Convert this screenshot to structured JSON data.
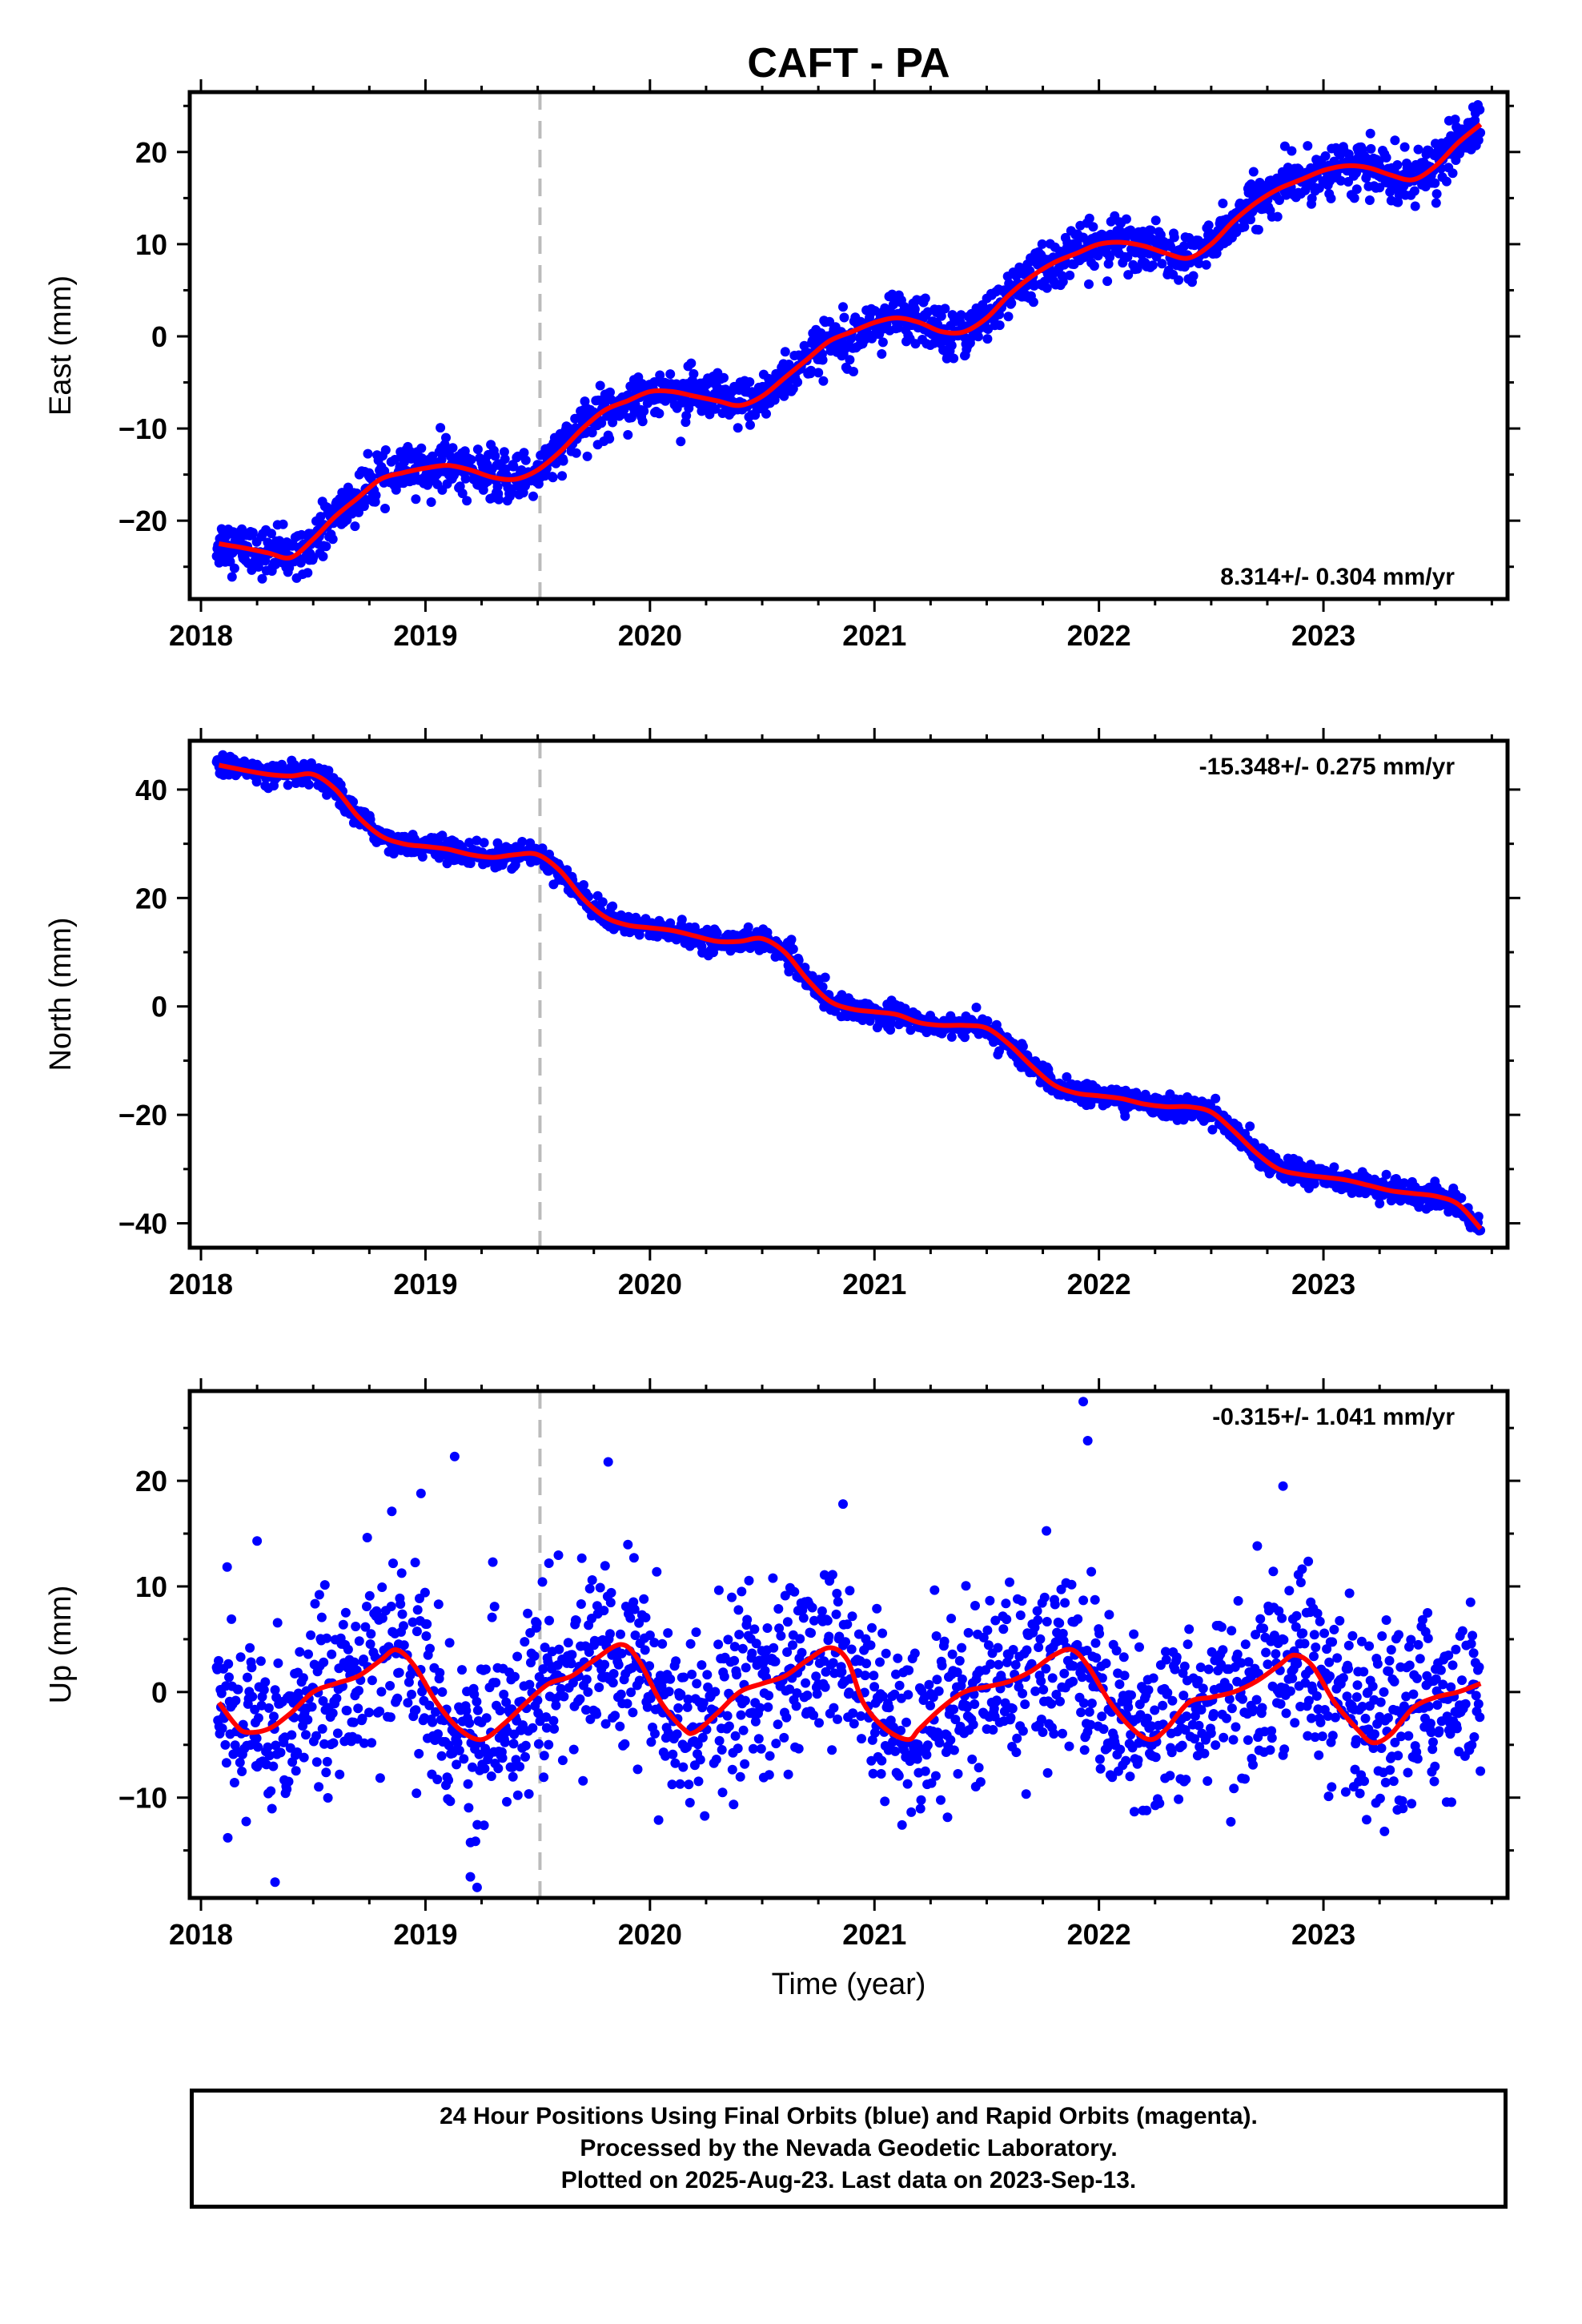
{
  "title": "CAFT - PA",
  "colors": {
    "points": "#0000ff",
    "fit": "#ff0000",
    "event_line": "#bbbbbb",
    "frame": "#000000"
  },
  "xlabel": "Time (year)",
  "footer": {
    "line1": "24 Hour Positions Using Final Orbits (blue) and Rapid Orbits (magenta).",
    "line2": "Processed by the Nevada Geodetic Laboratory.",
    "line3": "Plotted on 2025-Aug-23. Last data on 2023-Sep-13."
  },
  "chart_data": [
    {
      "type": "scatter",
      "panel": "east",
      "ylabel": "East (mm)",
      "rate_label": "8.314+/- 0.304 mm/yr",
      "rate_position": "bottom-right",
      "xlim": [
        2017.95,
        2023.82
      ],
      "ylim": [
        -28.5,
        26.5
      ],
      "x_ticks": [
        2018,
        2019,
        2020,
        2021,
        2022,
        2023
      ],
      "y_ticks": [
        -20,
        -10,
        0,
        10,
        20
      ],
      "event_line_x": 2019.51,
      "data_range": [
        2018.07,
        2023.7
      ],
      "series": [
        {
          "kind": "daily-points",
          "x": [
            2018.1,
            2018.2,
            2018.3,
            2018.4,
            2018.5,
            2018.6,
            2018.7,
            2018.8,
            2018.9,
            2019.0,
            2019.1,
            2019.2,
            2019.3,
            2019.4,
            2019.5,
            2019.6,
            2019.7,
            2019.8,
            2019.9,
            2020.0,
            2020.1,
            2020.2,
            2020.3,
            2020.4,
            2020.5,
            2020.6,
            2020.7,
            2020.8,
            2020.9,
            2021.0,
            2021.1,
            2021.2,
            2021.3,
            2021.4,
            2021.5,
            2021.6,
            2021.7,
            2021.8,
            2021.9,
            2022.0,
            2022.1,
            2022.2,
            2022.3,
            2022.4,
            2022.5,
            2022.6,
            2022.7,
            2022.8,
            2022.9,
            2023.0,
            2023.1,
            2023.2,
            2023.3,
            2023.4,
            2023.5,
            2023.6,
            2023.7
          ],
          "y": [
            -22.5,
            -23.0,
            -23.5,
            -24.0,
            -22.0,
            -19.5,
            -17.5,
            -15.5,
            -14.8,
            -14.3,
            -14.0,
            -14.5,
            -15.3,
            -15.5,
            -14.5,
            -12.5,
            -10.0,
            -8.0,
            -7.0,
            -6.0,
            -6.0,
            -6.5,
            -7.0,
            -7.5,
            -6.5,
            -4.5,
            -2.5,
            -0.5,
            0.5,
            1.5,
            2.0,
            1.5,
            0.5,
            0.5,
            2.0,
            4.5,
            6.5,
            8.0,
            9.0,
            10.0,
            10.2,
            9.8,
            9.0,
            8.5,
            10.0,
            12.5,
            14.5,
            16.0,
            17.0,
            18.0,
            18.5,
            18.3,
            17.5,
            17.0,
            18.5,
            21.0,
            23.0
          ],
          "scatter_sd": 1.3
        },
        {
          "kind": "model-fit",
          "x": [
            2018.08,
            2018.2,
            2018.3,
            2018.4,
            2018.5,
            2018.6,
            2018.7,
            2018.8,
            2018.9,
            2019.0,
            2019.1,
            2019.2,
            2019.3,
            2019.4,
            2019.5,
            2019.6,
            2019.7,
            2019.8,
            2019.9,
            2020.0,
            2020.1,
            2020.2,
            2020.3,
            2020.4,
            2020.5,
            2020.6,
            2020.7,
            2020.8,
            2020.9,
            2021.0,
            2021.1,
            2021.2,
            2021.3,
            2021.4,
            2021.5,
            2021.6,
            2021.7,
            2021.8,
            2021.9,
            2022.0,
            2022.1,
            2022.2,
            2022.3,
            2022.4,
            2022.5,
            2022.6,
            2022.7,
            2022.8,
            2022.9,
            2023.0,
            2023.1,
            2023.2,
            2023.3,
            2023.4,
            2023.5,
            2023.6,
            2023.7
          ],
          "y": [
            -22.5,
            -23.0,
            -23.5,
            -24.0,
            -22.0,
            -19.5,
            -17.5,
            -15.5,
            -14.8,
            -14.3,
            -14.0,
            -14.5,
            -15.3,
            -15.5,
            -14.5,
            -12.5,
            -10.0,
            -8.0,
            -7.0,
            -6.0,
            -6.0,
            -6.5,
            -7.0,
            -7.5,
            -6.5,
            -4.5,
            -2.5,
            -0.5,
            0.5,
            1.5,
            2.0,
            1.5,
            0.5,
            0.5,
            2.0,
            4.5,
            6.5,
            8.0,
            9.0,
            10.0,
            10.2,
            9.8,
            9.0,
            8.5,
            10.0,
            12.5,
            14.5,
            16.0,
            17.0,
            18.0,
            18.5,
            18.3,
            17.5,
            17.0,
            18.5,
            21.0,
            23.0
          ]
        }
      ]
    },
    {
      "type": "scatter",
      "panel": "north",
      "ylabel": "North (mm)",
      "rate_label": "-15.348+/- 0.275 mm/yr",
      "rate_position": "top-right",
      "xlim": [
        2017.95,
        2023.82
      ],
      "ylim": [
        -44.5,
        49
      ],
      "x_ticks": [
        2018,
        2019,
        2020,
        2021,
        2022,
        2023
      ],
      "y_ticks": [
        -40,
        -20,
        0,
        20,
        40
      ],
      "event_line_x": 2019.51,
      "data_range": [
        2018.07,
        2023.7
      ],
      "series": [
        {
          "kind": "daily-points",
          "x": [
            2018.1,
            2018.2,
            2018.3,
            2018.4,
            2018.5,
            2018.6,
            2018.7,
            2018.8,
            2018.9,
            2019.0,
            2019.1,
            2019.2,
            2019.3,
            2019.4,
            2019.5,
            2019.6,
            2019.7,
            2019.8,
            2019.9,
            2020.0,
            2020.1,
            2020.2,
            2020.3,
            2020.4,
            2020.5,
            2020.6,
            2020.7,
            2020.8,
            2020.9,
            2021.0,
            2021.1,
            2021.2,
            2021.3,
            2021.4,
            2021.5,
            2021.6,
            2021.7,
            2021.8,
            2021.9,
            2022.0,
            2022.1,
            2022.2,
            2022.3,
            2022.4,
            2022.5,
            2022.6,
            2022.7,
            2022.8,
            2022.9,
            2023.0,
            2023.1,
            2023.2,
            2023.3,
            2023.4,
            2023.5,
            2023.6,
            2023.7
          ],
          "y": [
            44.5,
            43.5,
            42.8,
            42.5,
            42.8,
            40.0,
            35.0,
            31.5,
            30.0,
            29.5,
            29.0,
            28.0,
            27.5,
            28.0,
            28.0,
            25.0,
            20.0,
            16.5,
            15.0,
            14.5,
            14.0,
            13.0,
            12.0,
            12.0,
            12.5,
            10.0,
            5.0,
            1.0,
            -0.5,
            -1.0,
            -1.5,
            -3.0,
            -3.5,
            -3.5,
            -4.0,
            -7.0,
            -11.0,
            -14.5,
            -16.0,
            -16.5,
            -17.0,
            -18.0,
            -18.5,
            -18.5,
            -19.5,
            -23.0,
            -27.0,
            -30.0,
            -31.0,
            -31.5,
            -32.0,
            -33.0,
            -34.0,
            -34.5,
            -35.0,
            -36.5,
            -41.0
          ],
          "scatter_sd": 1.0
        },
        {
          "kind": "model-fit",
          "x": [
            2018.08,
            2018.2,
            2018.3,
            2018.4,
            2018.5,
            2018.6,
            2018.7,
            2018.8,
            2018.9,
            2019.0,
            2019.1,
            2019.2,
            2019.3,
            2019.4,
            2019.5,
            2019.6,
            2019.7,
            2019.8,
            2019.9,
            2020.0,
            2020.1,
            2020.2,
            2020.3,
            2020.4,
            2020.5,
            2020.6,
            2020.7,
            2020.8,
            2020.9,
            2021.0,
            2021.1,
            2021.2,
            2021.3,
            2021.4,
            2021.5,
            2021.6,
            2021.7,
            2021.8,
            2021.9,
            2022.0,
            2022.1,
            2022.2,
            2022.3,
            2022.4,
            2022.5,
            2022.6,
            2022.7,
            2022.8,
            2022.9,
            2023.0,
            2023.1,
            2023.2,
            2023.3,
            2023.4,
            2023.5,
            2023.6,
            2023.7
          ],
          "y": [
            44.5,
            43.5,
            42.8,
            42.5,
            42.8,
            40.0,
            35.0,
            31.5,
            30.0,
            29.5,
            29.0,
            28.0,
            27.5,
            28.0,
            28.0,
            25.0,
            20.0,
            16.5,
            15.0,
            14.5,
            14.0,
            13.0,
            12.0,
            12.0,
            12.5,
            10.0,
            5.0,
            1.0,
            -0.5,
            -1.0,
            -1.5,
            -3.0,
            -3.5,
            -3.5,
            -4.0,
            -7.0,
            -11.0,
            -14.5,
            -16.0,
            -16.5,
            -17.0,
            -18.0,
            -18.5,
            -18.5,
            -19.5,
            -23.0,
            -27.0,
            -30.0,
            -31.0,
            -31.5,
            -32.0,
            -33.0,
            -34.0,
            -34.5,
            -35.0,
            -36.5,
            -41.0
          ]
        }
      ]
    },
    {
      "type": "scatter",
      "panel": "up",
      "ylabel": "Up (mm)",
      "rate_label": "-0.315+/- 1.041 mm/yr",
      "rate_position": "top-right",
      "xlim": [
        2017.95,
        2023.82
      ],
      "ylim": [
        -19.5,
        28.5
      ],
      "x_ticks": [
        2018,
        2019,
        2020,
        2021,
        2022,
        2023
      ],
      "y_ticks": [
        -10,
        0,
        10,
        20
      ],
      "event_line_x": 2019.51,
      "data_range": [
        2018.07,
        2023.7
      ],
      "series": [
        {
          "kind": "daily-points",
          "x": [
            2018.08,
            2018.15,
            2018.2,
            2018.3,
            2018.4,
            2018.5,
            2018.6,
            2018.7,
            2018.8,
            2018.87,
            2018.95,
            2019.05,
            2019.15,
            2019.25,
            2019.35,
            2019.45,
            2019.55,
            2019.65,
            2019.75,
            2019.87,
            2019.95,
            2020.05,
            2020.15,
            2020.2,
            2020.3,
            2020.4,
            2020.5,
            2020.6,
            2020.7,
            2020.8,
            2020.88,
            2020.95,
            2021.05,
            2021.15,
            2021.2,
            2021.3,
            2021.4,
            2021.5,
            2021.6,
            2021.7,
            2021.8,
            2021.88,
            2021.95,
            2022.05,
            2022.15,
            2022.23,
            2022.3,
            2022.4,
            2022.5,
            2022.6,
            2022.7,
            2022.8,
            2022.87,
            2022.95,
            2023.05,
            2023.15,
            2023.22,
            2023.3,
            2023.4,
            2023.5,
            2023.6,
            2023.7
          ],
          "y": [
            -1.0,
            -3.0,
            -3.8,
            -3.5,
            -2.0,
            0.0,
            0.8,
            1.5,
            3.0,
            4.0,
            2.5,
            -1.0,
            -3.5,
            -4.5,
            -3.0,
            -1.0,
            0.8,
            1.5,
            3.0,
            4.5,
            3.0,
            -1.0,
            -3.5,
            -3.8,
            -2.0,
            0.0,
            0.8,
            1.5,
            3.0,
            4.2,
            3.0,
            -1.0,
            -3.5,
            -4.5,
            -3.5,
            -1.5,
            0.0,
            0.5,
            1.0,
            2.0,
            3.5,
            4.0,
            2.5,
            -1.0,
            -3.5,
            -4.5,
            -3.5,
            -1.0,
            -0.5,
            0.0,
            1.0,
            2.5,
            3.5,
            2.5,
            -1.0,
            -3.5,
            -4.8,
            -4.0,
            -1.5,
            -0.5,
            0.0,
            0.8
          ],
          "scatter_sd": 4.2
        },
        {
          "kind": "model-fit",
          "x": [
            2018.08,
            2018.15,
            2018.2,
            2018.3,
            2018.4,
            2018.5,
            2018.6,
            2018.7,
            2018.8,
            2018.87,
            2018.95,
            2019.05,
            2019.15,
            2019.25,
            2019.35,
            2019.45,
            2019.55,
            2019.65,
            2019.75,
            2019.87,
            2019.95,
            2020.05,
            2020.15,
            2020.2,
            2020.3,
            2020.4,
            2020.5,
            2020.6,
            2020.7,
            2020.8,
            2020.88,
            2020.95,
            2021.05,
            2021.15,
            2021.2,
            2021.3,
            2021.4,
            2021.5,
            2021.6,
            2021.7,
            2021.8,
            2021.88,
            2021.95,
            2022.05,
            2022.15,
            2022.23,
            2022.3,
            2022.4,
            2022.5,
            2022.6,
            2022.7,
            2022.8,
            2022.87,
            2022.95,
            2023.05,
            2023.15,
            2023.22,
            2023.3,
            2023.4,
            2023.5,
            2023.6,
            2023.7
          ],
          "y": [
            -1.0,
            -3.0,
            -3.8,
            -3.5,
            -2.0,
            0.0,
            0.8,
            1.5,
            3.0,
            4.0,
            2.5,
            -1.0,
            -3.5,
            -4.5,
            -3.0,
            -1.0,
            0.8,
            1.5,
            3.0,
            4.5,
            3.0,
            -1.0,
            -3.5,
            -3.8,
            -2.0,
            0.0,
            0.8,
            1.5,
            3.0,
            4.2,
            3.0,
            -1.0,
            -3.5,
            -4.5,
            -3.5,
            -1.5,
            0.0,
            0.5,
            1.0,
            2.0,
            3.5,
            4.0,
            2.5,
            -1.0,
            -3.5,
            -4.5,
            -3.5,
            -1.0,
            -0.5,
            0.0,
            1.0,
            2.5,
            3.5,
            2.5,
            -1.0,
            -3.5,
            -4.8,
            -4.0,
            -1.5,
            -0.5,
            0.0,
            0.8
          ]
        },
        {
          "kind": "outliers",
          "x": [
            2018.33,
            2018.98,
            2019.13,
            2019.23,
            2019.2,
            2019.55,
            2020.86,
            2021.93,
            2021.95,
            2022.82,
            2019.3,
            2018.25
          ],
          "y": [
            -18.0,
            18.8,
            22.3,
            -18.5,
            -17.5,
            12.2,
            17.8,
            27.5,
            23.8,
            19.5,
            12.3,
            14.3
          ]
        }
      ]
    }
  ]
}
